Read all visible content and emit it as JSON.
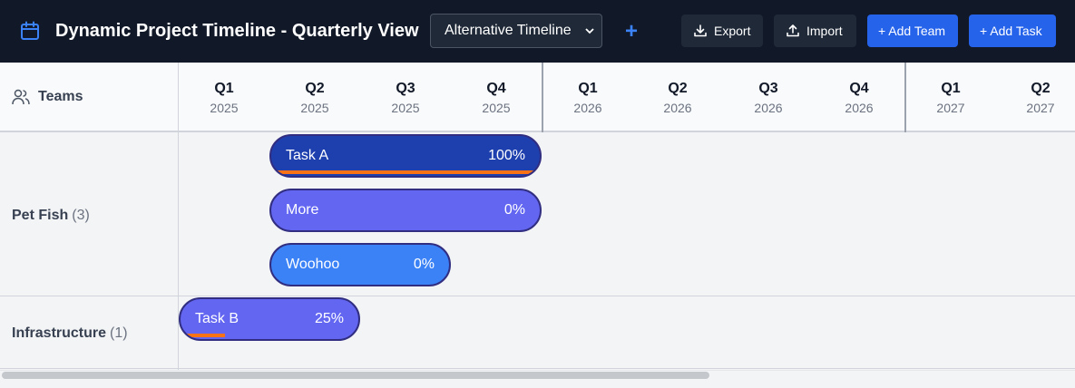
{
  "app": {
    "title": "Dynamic Project Timeline - Quarterly View"
  },
  "toolbar": {
    "timeline_select": "Alternative Timeline",
    "add_label": "+",
    "export_label": "Export",
    "import_label": "Import",
    "add_team_label": "+ Add Team",
    "add_task_label": "+ Add Task"
  },
  "header": {
    "teams_label": "Teams",
    "quarters": [
      {
        "q": "Q1",
        "y": "2025"
      },
      {
        "q": "Q2",
        "y": "2025"
      },
      {
        "q": "Q3",
        "y": "2025"
      },
      {
        "q": "Q4",
        "y": "2025"
      },
      {
        "q": "Q1",
        "y": "2026"
      },
      {
        "q": "Q2",
        "y": "2026"
      },
      {
        "q": "Q3",
        "y": "2026"
      },
      {
        "q": "Q4",
        "y": "2026"
      },
      {
        "q": "Q1",
        "y": "2027"
      },
      {
        "q": "Q2",
        "y": "2027"
      }
    ]
  },
  "teams": [
    {
      "name": "Pet Fish",
      "count": "(3)",
      "tasks": [
        {
          "name": "Task A",
          "percent": "100%",
          "progress": 1.0,
          "color": "#1e40af"
        },
        {
          "name": "More",
          "percent": "0%",
          "progress": 0.0,
          "color": "#6366f1"
        },
        {
          "name": "Woohoo",
          "percent": "0%",
          "progress": 0.0,
          "color": "#3b82f6"
        }
      ]
    },
    {
      "name": "Infrastructure",
      "count": "(1)",
      "tasks": [
        {
          "name": "Task B",
          "percent": "25%",
          "progress": 0.25,
          "color": "#6366f1"
        }
      ]
    }
  ],
  "colors": {
    "topbar": "#111827",
    "accent": "#2563eb",
    "progress": "#f97316"
  }
}
